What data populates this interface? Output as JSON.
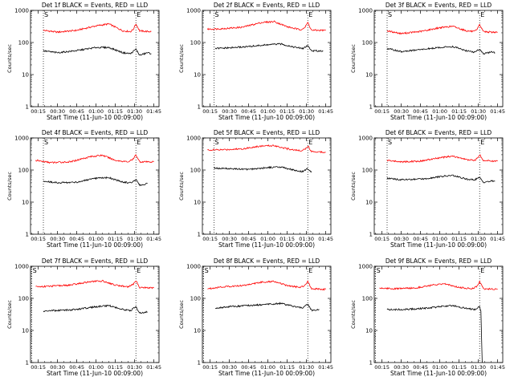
{
  "chart_data": [
    {
      "type": "line",
      "title": "Det 1f BLACK = Events, RED = LLD",
      "xlabel": "Start Time (11-Jun-10 00:09:00)",
      "ylabel": "Counts/sec",
      "yscale": "log",
      "ylim": [
        1,
        1000
      ],
      "ytick_labels": [
        "1",
        "10",
        "100",
        "1000"
      ],
      "xlim": [
        "00:09",
        "01:49"
      ],
      "xtick_labels": [
        "00:15",
        "00:30",
        "00:45",
        "01:00",
        "01:15",
        "01:30",
        "01:45"
      ],
      "markers": [
        "S",
        "E"
      ],
      "marker_times": [
        "00:19",
        "01:31"
      ],
      "grid": false,
      "legend": "none",
      "series": [
        {
          "color": "#ff0000",
          "x": [
            "00:19",
            "00:30",
            "00:45",
            "01:00",
            "01:10",
            "01:21",
            "01:27",
            "01:29",
            "01:31",
            "01:34",
            "01:40",
            "01:43"
          ],
          "y": [
            240,
            210,
            240,
            330,
            380,
            230,
            220,
            260,
            380,
            230,
            220,
            220
          ]
        },
        {
          "color": "#000000",
          "x": [
            "00:19",
            "00:30",
            "00:45",
            "01:00",
            "01:10",
            "01:21",
            "01:27",
            "01:31",
            "01:34",
            "01:40",
            "01:43"
          ],
          "y": [
            55,
            48,
            56,
            70,
            70,
            48,
            45,
            62,
            40,
            48,
            45
          ]
        }
      ]
    },
    {
      "type": "line",
      "title": "Det 2f BLACK = Events, RED = LLD",
      "xlabel": "Start Time (11-Jun-10 00:09:00)",
      "ylabel": "Counts/sec",
      "yscale": "log",
      "ylim": [
        1,
        1000
      ],
      "ytick_labels": [
        "1",
        "10",
        "100",
        "1000"
      ],
      "xlim": [
        "00:09",
        "01:49"
      ],
      "xtick_labels": [
        "00:15",
        "00:30",
        "00:45",
        "01:00",
        "01:15",
        "01:30",
        "01:45"
      ],
      "markers": [
        "S",
        "E"
      ],
      "marker_times": [
        "00:18",
        "01:31"
      ],
      "grid": false,
      "legend": "none",
      "series": [
        {
          "color": "#ff0000",
          "x": [
            "00:13",
            "00:25",
            "00:40",
            "00:55",
            "01:05",
            "01:15",
            "01:25",
            "01:29",
            "01:31",
            "01:34",
            "01:45"
          ],
          "y": [
            260,
            270,
            300,
            420,
            450,
            310,
            250,
            300,
            420,
            240,
            240
          ]
        },
        {
          "color": "#000000",
          "x": [
            "00:19",
            "00:30",
            "00:45",
            "01:00",
            "01:10",
            "01:22",
            "01:27",
            "01:31",
            "01:34",
            "01:40",
            "01:43"
          ],
          "y": [
            65,
            68,
            75,
            85,
            90,
            70,
            65,
            80,
            55,
            55,
            55
          ]
        }
      ]
    },
    {
      "type": "line",
      "title": "Det 3f BLACK = Events, RED = LLD",
      "xlabel": "Start Time (11-Jun-10 00:09:00)",
      "ylabel": "Counts/sec",
      "yscale": "log",
      "ylim": [
        1,
        1000
      ],
      "ytick_labels": [
        "1",
        "10",
        "100",
        "1000"
      ],
      "xlim": [
        "00:09",
        "01:49"
      ],
      "xtick_labels": [
        "00:15",
        "00:30",
        "00:45",
        "01:00",
        "01:15",
        "01:30",
        "01:45"
      ],
      "markers": [
        "S",
        "E"
      ],
      "marker_times": [
        "00:19",
        "01:31"
      ],
      "grid": false,
      "legend": "none",
      "series": [
        {
          "color": "#ff0000",
          "x": [
            "00:19",
            "00:30",
            "00:45",
            "01:00",
            "01:10",
            "01:21",
            "01:27",
            "01:29",
            "01:31",
            "01:34",
            "01:40",
            "01:45"
          ],
          "y": [
            230,
            190,
            220,
            290,
            320,
            230,
            220,
            250,
            360,
            220,
            210,
            210
          ]
        },
        {
          "color": "#000000",
          "x": [
            "00:19",
            "00:30",
            "00:45",
            "01:00",
            "01:10",
            "01:21",
            "01:27",
            "01:31",
            "01:34",
            "01:40",
            "01:43"
          ],
          "y": [
            65,
            52,
            60,
            70,
            75,
            55,
            50,
            62,
            45,
            50,
            48
          ]
        }
      ]
    },
    {
      "type": "line",
      "title": "Det 4f BLACK = Events, RED = LLD",
      "xlabel": "Start Time (11-Jun-10 00:09:00)",
      "ylabel": "Counts/sec",
      "yscale": "log",
      "ylim": [
        1,
        1000
      ],
      "ytick_labels": [
        "1",
        "10",
        "100",
        "1000"
      ],
      "xlim": [
        "00:09",
        "01:49"
      ],
      "xtick_labels": [
        "00:15",
        "00:30",
        "00:45",
        "01:00",
        "01:15",
        "01:30",
        "01:45"
      ],
      "markers": [
        "S",
        "E"
      ],
      "marker_times": [
        "00:19",
        "01:31"
      ],
      "grid": false,
      "legend": "none",
      "series": [
        {
          "color": "#ff0000",
          "x": [
            "00:13",
            "00:25",
            "00:40",
            "00:55",
            "01:05",
            "01:15",
            "01:25",
            "01:29",
            "01:31",
            "01:34",
            "01:45"
          ],
          "y": [
            200,
            170,
            180,
            260,
            290,
            200,
            180,
            220,
            300,
            180,
            180
          ]
        },
        {
          "color": "#000000",
          "x": [
            "00:19",
            "00:30",
            "00:45",
            "01:00",
            "01:10",
            "01:21",
            "01:27",
            "01:31",
            "01:34",
            "01:40"
          ],
          "y": [
            45,
            40,
            42,
            55,
            58,
            42,
            40,
            50,
            33,
            38
          ]
        }
      ]
    },
    {
      "type": "line",
      "title": "Det 5f BLACK = Events, RED = LLD",
      "xlabel": "Start Time (11-Jun-10 00:09:00)",
      "ylabel": "Counts/sec",
      "yscale": "log",
      "ylim": [
        1,
        1000
      ],
      "ytick_labels": [
        "1",
        "10",
        "100",
        "1000"
      ],
      "xlim": [
        "00:09",
        "01:49"
      ],
      "xtick_labels": [
        "00:15",
        "00:30",
        "00:45",
        "01:00",
        "01:15",
        "01:30",
        "01:45"
      ],
      "markers": [
        "S",
        "E"
      ],
      "marker_times": [
        "00:18",
        "01:31"
      ],
      "grid": false,
      "legend": "none",
      "series": [
        {
          "color": "#ff0000",
          "x": [
            "00:13",
            "00:25",
            "00:40",
            "00:55",
            "01:05",
            "01:15",
            "01:25",
            "01:29",
            "01:31",
            "01:34",
            "01:45"
          ],
          "y": [
            420,
            430,
            460,
            560,
            580,
            460,
            400,
            450,
            560,
            380,
            360
          ]
        },
        {
          "color": "#000000",
          "x": [
            "00:18",
            "00:30",
            "00:45",
            "01:00",
            "01:10",
            "01:22",
            "01:27",
            "01:31",
            "01:34"
          ],
          "y": [
            115,
            110,
            105,
            120,
            125,
            95,
            90,
            110,
            85
          ]
        }
      ]
    },
    {
      "type": "line",
      "title": "Det 6f BLACK = Events, RED = LLD",
      "xlabel": "Start Time (11-Jun-10 00:09:00)",
      "ylabel": "Counts/sec",
      "yscale": "log",
      "ylim": [
        1,
        1000
      ],
      "ytick_labels": [
        "1",
        "10",
        "100",
        "1000"
      ],
      "xlim": [
        "00:09",
        "01:49"
      ],
      "xtick_labels": [
        "00:15",
        "00:30",
        "00:45",
        "01:00",
        "01:15",
        "01:30",
        "01:45"
      ],
      "markers": [
        "S",
        "E"
      ],
      "marker_times": [
        "00:19",
        "01:31"
      ],
      "grid": false,
      "legend": "none",
      "series": [
        {
          "color": "#ff0000",
          "x": [
            "00:19",
            "00:30",
            "00:45",
            "01:00",
            "01:10",
            "01:21",
            "01:27",
            "01:29",
            "01:31",
            "01:34",
            "01:40",
            "01:45"
          ],
          "y": [
            200,
            180,
            190,
            240,
            270,
            210,
            200,
            230,
            300,
            200,
            190,
            190
          ]
        },
        {
          "color": "#000000",
          "x": [
            "00:19",
            "00:30",
            "00:45",
            "01:00",
            "01:10",
            "01:21",
            "01:27",
            "01:31",
            "01:34",
            "01:40",
            "01:43"
          ],
          "y": [
            55,
            50,
            52,
            62,
            68,
            52,
            50,
            58,
            42,
            45,
            45
          ]
        }
      ]
    },
    {
      "type": "line",
      "title": "Det 7f BLACK = Events, RED = LLD",
      "xlabel": "Start Time (11-Jun-10 00:09:00)",
      "ylabel": "Counts/sec",
      "yscale": "log",
      "ylim": [
        1,
        1000
      ],
      "ytick_labels": [
        "1",
        "10",
        "100",
        "1000"
      ],
      "xlim": [
        "00:09",
        "01:49"
      ],
      "xtick_labels": [
        "00:15",
        "00:30",
        "00:45",
        "01:00",
        "01:15",
        "01:30",
        "01:45"
      ],
      "markers": [
        "S",
        "E"
      ],
      "marker_times": [
        "00:10",
        "01:31"
      ],
      "grid": false,
      "legend": "none",
      "series": [
        {
          "color": "#ff0000",
          "x": [
            "00:13",
            "00:25",
            "00:40",
            "00:55",
            "01:05",
            "01:15",
            "01:25",
            "01:29",
            "01:31",
            "01:34",
            "01:45"
          ],
          "y": [
            230,
            240,
            260,
            330,
            350,
            260,
            230,
            270,
            360,
            220,
            210
          ]
        },
        {
          "color": "#000000",
          "x": [
            "00:19",
            "00:30",
            "00:45",
            "01:00",
            "01:10",
            "01:21",
            "01:27",
            "01:31",
            "01:34",
            "01:40"
          ],
          "y": [
            40,
            42,
            45,
            55,
            60,
            45,
            42,
            55,
            35,
            38
          ]
        }
      ]
    },
    {
      "type": "line",
      "title": "Det 8f BLACK = Events, RED = LLD",
      "xlabel": "Start Time (11-Jun-10 00:09:00)",
      "ylabel": "Counts/sec",
      "yscale": "log",
      "ylim": [
        1,
        1000
      ],
      "ytick_labels": [
        "1",
        "10",
        "100",
        "1000"
      ],
      "xlim": [
        "00:09",
        "01:49"
      ],
      "xtick_labels": [
        "00:15",
        "00:30",
        "00:45",
        "01:00",
        "01:15",
        "01:30",
        "01:45"
      ],
      "markers": [
        "S",
        "E"
      ],
      "marker_times": [
        "00:10",
        "01:31"
      ],
      "grid": false,
      "legend": "none",
      "series": [
        {
          "color": "#ff0000",
          "x": [
            "00:13",
            "00:25",
            "00:40",
            "00:55",
            "01:05",
            "01:15",
            "01:25",
            "01:29",
            "01:31",
            "01:34",
            "01:45"
          ],
          "y": [
            200,
            230,
            250,
            320,
            340,
            250,
            220,
            260,
            350,
            200,
            190
          ]
        },
        {
          "color": "#000000",
          "x": [
            "00:19",
            "00:30",
            "00:45",
            "01:00",
            "01:10",
            "01:21",
            "01:27",
            "01:31",
            "01:34",
            "01:40"
          ],
          "y": [
            50,
            55,
            60,
            65,
            70,
            55,
            50,
            65,
            42,
            45
          ]
        }
      ]
    },
    {
      "type": "line",
      "title": "Det 9f BLACK = Events, RED = LLD",
      "xlabel": "Start Time (11-Jun-10 00:09:00)",
      "ylabel": "Counts/sec",
      "yscale": "log",
      "ylim": [
        1,
        1000
      ],
      "ytick_labels": [
        "1",
        "10",
        "100",
        "1000"
      ],
      "xlim": [
        "00:09",
        "01:49"
      ],
      "xtick_labels": [
        "00:15",
        "00:30",
        "00:45",
        "01:00",
        "01:15",
        "01:30",
        "01:45"
      ],
      "markers": [
        "S",
        "E"
      ],
      "marker_times": [
        "00:10",
        "01:31"
      ],
      "grid": false,
      "legend": "none",
      "series": [
        {
          "color": "#ff0000",
          "x": [
            "00:13",
            "00:25",
            "00:40",
            "00:55",
            "01:05",
            "01:15",
            "01:25",
            "01:29",
            "01:31",
            "01:34",
            "01:45"
          ],
          "y": [
            210,
            200,
            210,
            260,
            280,
            220,
            200,
            240,
            330,
            200,
            190
          ]
        },
        {
          "color": "#000000",
          "x": [
            "00:19",
            "00:30",
            "00:45",
            "01:00",
            "01:10",
            "01:21",
            "01:27",
            "01:31",
            "01:32",
            "01:33"
          ],
          "y": [
            45,
            45,
            48,
            55,
            60,
            48,
            45,
            55,
            40,
            1
          ]
        }
      ]
    }
  ]
}
